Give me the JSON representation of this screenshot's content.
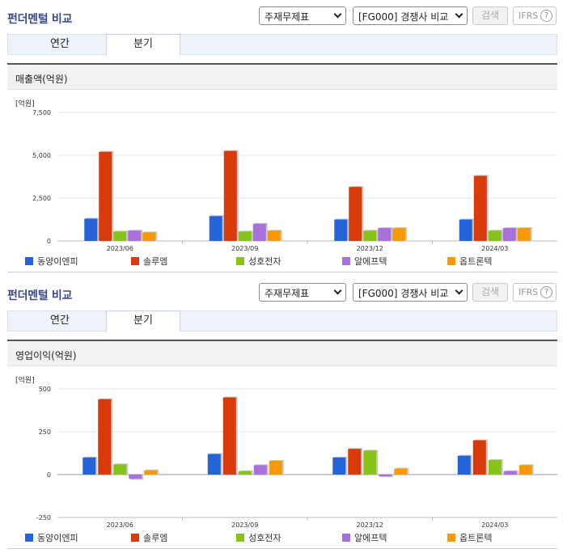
{
  "panels": [
    {
      "title": "펀더멘털 비교",
      "select_statement": "주재무제표",
      "select_compare": "[FG000] 경쟁사 비교",
      "search_label": "검색",
      "ifrs_label": "IFRS",
      "help_label": "?",
      "tabs": [
        "연간",
        "분기"
      ],
      "active_tab": "분기",
      "section_title": "매출액(억원)",
      "unit_label": "[억원]"
    },
    {
      "title": "펀더멘털 비교",
      "select_statement": "주재무제표",
      "select_compare": "[FG000] 경쟁사 비교",
      "search_label": "검색",
      "ifrs_label": "IFRS",
      "help_label": "?",
      "tabs": [
        "연간",
        "분기"
      ],
      "active_tab": "분기",
      "section_title": "영업이익(억원)",
      "unit_label": "[억원]"
    }
  ],
  "colors": {
    "동양이엔피": "#2563d8",
    "솔루엠": "#d83a0a",
    "성호전자": "#86c41a",
    "알에프텍": "#a970dc",
    "옵트론텍": "#f59a00"
  },
  "chart_data": [
    {
      "type": "bar",
      "title": "매출액(억원)",
      "ylabel": "[억원]",
      "categories": [
        "2023/06",
        "2023/09",
        "2023/12",
        "2024/03"
      ],
      "ylim": [
        0,
        7500
      ],
      "yticks": [
        0,
        2500,
        5000,
        7500
      ],
      "ytick_labels": [
        "0",
        "2,500",
        "5,000",
        "7,500"
      ],
      "series": [
        {
          "name": "동양이엔피",
          "values": [
            1300,
            1450,
            1250,
            1250
          ]
        },
        {
          "name": "솔루엠",
          "values": [
            5200,
            5250,
            3150,
            3800
          ]
        },
        {
          "name": "성호전자",
          "values": [
            550,
            550,
            600,
            600
          ]
        },
        {
          "name": "알에프텍",
          "values": [
            600,
            1000,
            750,
            750
          ]
        },
        {
          "name": "옵트론텍",
          "values": [
            500,
            600,
            750,
            750
          ]
        }
      ],
      "legend": "bottom"
    },
    {
      "type": "bar",
      "title": "영업이익(억원)",
      "ylabel": "[억원]",
      "categories": [
        "2023/06",
        "2023/09",
        "2023/12",
        "2024/03"
      ],
      "ylim": [
        -250,
        500
      ],
      "yticks": [
        -250,
        0,
        250,
        500
      ],
      "ytick_labels": [
        "-250",
        "0",
        "250",
        "500"
      ],
      "series": [
        {
          "name": "동양이엔피",
          "values": [
            100,
            120,
            100,
            110
          ]
        },
        {
          "name": "솔루엠",
          "values": [
            440,
            450,
            150,
            200
          ]
        },
        {
          "name": "성호전자",
          "values": [
            60,
            20,
            140,
            85
          ]
        },
        {
          "name": "알에프텍",
          "values": [
            -25,
            55,
            -10,
            20
          ]
        },
        {
          "name": "옵트론텍",
          "values": [
            25,
            80,
            35,
            55
          ]
        }
      ],
      "legend": "bottom"
    }
  ]
}
